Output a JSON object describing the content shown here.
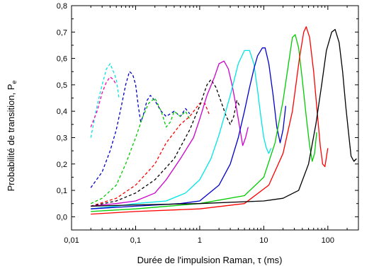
{
  "chart_data": {
    "type": "line",
    "xlabel": "Durée de l'impulsion Raman, τ (ms)",
    "ylabel": "Probabilité de transition, P",
    "ylabel_subscript": "e",
    "x_scale": "log",
    "xlim": [
      0.01,
      300
    ],
    "ylim": [
      -0.05,
      0.8
    ],
    "x_ticks": [
      {
        "value": 0.01,
        "label": "0,01"
      },
      {
        "value": 0.1,
        "label": "0,1"
      },
      {
        "value": 1,
        "label": "1"
      },
      {
        "value": 10,
        "label": "10"
      },
      {
        "value": 100,
        "label": "100"
      }
    ],
    "y_ticks": [
      {
        "value": 0.0,
        "label": "0,0"
      },
      {
        "value": 0.1,
        "label": "0,1"
      },
      {
        "value": 0.2,
        "label": "0,2"
      },
      {
        "value": 0.3,
        "label": "0,3"
      },
      {
        "value": 0.4,
        "label": "0,4"
      },
      {
        "value": 0.5,
        "label": "0,5"
      },
      {
        "value": 0.6,
        "label": "0,6"
      },
      {
        "value": 0.7,
        "label": "0,7"
      },
      {
        "value": 0.8,
        "label": "0,8"
      }
    ],
    "grid": false,
    "series": [
      {
        "color": "#00e5e5",
        "style": "dashed",
        "points": [
          [
            0.02,
            0.3
          ],
          [
            0.025,
            0.42
          ],
          [
            0.03,
            0.5
          ],
          [
            0.035,
            0.56
          ],
          [
            0.04,
            0.58
          ],
          [
            0.045,
            0.55
          ],
          [
            0.05,
            0.52
          ],
          [
            0.055,
            0.45
          ]
        ]
      },
      {
        "color": "#ff00aa",
        "style": "dashed",
        "points": [
          [
            0.02,
            0.34
          ],
          [
            0.025,
            0.4
          ],
          [
            0.03,
            0.47
          ],
          [
            0.035,
            0.51
          ],
          [
            0.04,
            0.53
          ],
          [
            0.045,
            0.52
          ],
          [
            0.05,
            0.5
          ]
        ]
      },
      {
        "color": "#0000cc",
        "style": "dashed",
        "points": [
          [
            0.02,
            0.11
          ],
          [
            0.03,
            0.17
          ],
          [
            0.04,
            0.25
          ],
          [
            0.05,
            0.33
          ],
          [
            0.06,
            0.42
          ],
          [
            0.07,
            0.5
          ],
          [
            0.08,
            0.55
          ],
          [
            0.09,
            0.54
          ],
          [
            0.1,
            0.5
          ],
          [
            0.11,
            0.42
          ],
          [
            0.12,
            0.36
          ],
          [
            0.13,
            0.38
          ],
          [
            0.15,
            0.44
          ],
          [
            0.17,
            0.46
          ],
          [
            0.2,
            0.44
          ],
          [
            0.25,
            0.4
          ],
          [
            0.3,
            0.38
          ],
          [
            0.4,
            0.4
          ],
          [
            0.5,
            0.38
          ],
          [
            0.6,
            0.41
          ],
          [
            0.7,
            0.39
          ]
        ]
      },
      {
        "color": "#00cc00",
        "style": "dashed",
        "points": [
          [
            0.02,
            0.05
          ],
          [
            0.03,
            0.07
          ],
          [
            0.05,
            0.12
          ],
          [
            0.07,
            0.2
          ],
          [
            0.1,
            0.3
          ],
          [
            0.13,
            0.38
          ],
          [
            0.16,
            0.43
          ],
          [
            0.2,
            0.45
          ],
          [
            0.25,
            0.4
          ],
          [
            0.3,
            0.34
          ],
          [
            0.35,
            0.36
          ],
          [
            0.4,
            0.4
          ],
          [
            0.5,
            0.38
          ],
          [
            0.6,
            0.4
          ],
          [
            0.7,
            0.37
          ]
        ]
      },
      {
        "color": "#ff0000",
        "style": "dashed",
        "points": [
          [
            0.02,
            0.04
          ],
          [
            0.05,
            0.07
          ],
          [
            0.1,
            0.12
          ],
          [
            0.2,
            0.2
          ],
          [
            0.3,
            0.28
          ],
          [
            0.5,
            0.35
          ],
          [
            0.7,
            0.38
          ],
          [
            1.0,
            0.43
          ],
          [
            1.2,
            0.43
          ],
          [
            1.4,
            0.39
          ]
        ]
      },
      {
        "color": "#000000",
        "style": "dashed",
        "points": [
          [
            0.02,
            0.04
          ],
          [
            0.05,
            0.06
          ],
          [
            0.1,
            0.09
          ],
          [
            0.2,
            0.14
          ],
          [
            0.4,
            0.22
          ],
          [
            0.7,
            0.33
          ],
          [
            1.0,
            0.42
          ],
          [
            1.3,
            0.5
          ],
          [
            1.5,
            0.52
          ],
          [
            1.8,
            0.49
          ],
          [
            2.2,
            0.43
          ],
          [
            2.6,
            0.38
          ],
          [
            3.0,
            0.35
          ],
          [
            3.4,
            0.38
          ],
          [
            3.8,
            0.44
          ],
          [
            4.2,
            0.42
          ]
        ]
      },
      {
        "color": "#cc00cc",
        "style": "solid",
        "points": [
          [
            0.02,
            0.04
          ],
          [
            0.05,
            0.05
          ],
          [
            0.1,
            0.06
          ],
          [
            0.2,
            0.09
          ],
          [
            0.3,
            0.14
          ],
          [
            0.5,
            0.22
          ],
          [
            0.8,
            0.3
          ],
          [
            1.0,
            0.37
          ],
          [
            1.3,
            0.46
          ],
          [
            1.7,
            0.53
          ],
          [
            2.0,
            0.58
          ],
          [
            2.4,
            0.59
          ],
          [
            2.8,
            0.56
          ],
          [
            3.2,
            0.5
          ],
          [
            3.7,
            0.42
          ],
          [
            4.2,
            0.34
          ],
          [
            4.7,
            0.27
          ],
          [
            5.2,
            0.3
          ],
          [
            5.7,
            0.34
          ]
        ]
      },
      {
        "color": "#00e5e5",
        "style": "solid",
        "points": [
          [
            0.02,
            0.03
          ],
          [
            0.05,
            0.04
          ],
          [
            0.1,
            0.05
          ],
          [
            0.3,
            0.06
          ],
          [
            0.6,
            0.09
          ],
          [
            1.0,
            0.14
          ],
          [
            1.5,
            0.22
          ],
          [
            2.0,
            0.31
          ],
          [
            3.0,
            0.46
          ],
          [
            4.0,
            0.58
          ],
          [
            5.0,
            0.63
          ],
          [
            6.0,
            0.63
          ],
          [
            7.0,
            0.58
          ],
          [
            8.0,
            0.48
          ],
          [
            9.0,
            0.38
          ],
          [
            10.0,
            0.3
          ],
          [
            11.0,
            0.26
          ],
          [
            12.0,
            0.24
          ],
          [
            13.0,
            0.26
          ]
        ]
      },
      {
        "color": "#0000cc",
        "style": "solid",
        "points": [
          [
            0.02,
            0.03
          ],
          [
            0.1,
            0.04
          ],
          [
            0.5,
            0.05
          ],
          [
            1.0,
            0.06
          ],
          [
            2.0,
            0.12
          ],
          [
            3.0,
            0.2
          ],
          [
            4.0,
            0.3
          ],
          [
            5.0,
            0.4
          ],
          [
            6.0,
            0.49
          ],
          [
            7.0,
            0.56
          ],
          [
            8.0,
            0.61
          ],
          [
            9.5,
            0.64
          ],
          [
            10.5,
            0.64
          ],
          [
            12.0,
            0.58
          ],
          [
            14.0,
            0.46
          ],
          [
            16.0,
            0.34
          ],
          [
            18.0,
            0.28
          ],
          [
            20.0,
            0.33
          ],
          [
            22.0,
            0.42
          ]
        ]
      },
      {
        "color": "#00cc00",
        "style": "solid",
        "points": [
          [
            0.02,
            0.02
          ],
          [
            0.1,
            0.03
          ],
          [
            1.0,
            0.05
          ],
          [
            5.0,
            0.08
          ],
          [
            10.0,
            0.15
          ],
          [
            15.0,
            0.28
          ],
          [
            20.0,
            0.44
          ],
          [
            25.0,
            0.6
          ],
          [
            28.0,
            0.68
          ],
          [
            31.0,
            0.69
          ],
          [
            35.0,
            0.64
          ],
          [
            40.0,
            0.52
          ],
          [
            46.0,
            0.38
          ],
          [
            52.0,
            0.27
          ],
          [
            57.0,
            0.21
          ],
          [
            62.0,
            0.24
          ],
          [
            67.0,
            0.32
          ]
        ]
      },
      {
        "color": "#ff0000",
        "style": "solid",
        "points": [
          [
            0.02,
            0.01
          ],
          [
            0.1,
            0.02
          ],
          [
            1.0,
            0.03
          ],
          [
            5.0,
            0.05
          ],
          [
            12.0,
            0.12
          ],
          [
            20.0,
            0.24
          ],
          [
            28.0,
            0.4
          ],
          [
            36.0,
            0.6
          ],
          [
            42.0,
            0.7
          ],
          [
            46.0,
            0.72
          ],
          [
            52.0,
            0.68
          ],
          [
            60.0,
            0.55
          ],
          [
            68.0,
            0.4
          ],
          [
            76.0,
            0.27
          ],
          [
            83.0,
            0.2
          ],
          [
            90.0,
            0.19
          ],
          [
            100.0,
            0.26
          ]
        ]
      },
      {
        "color": "#000000",
        "style": "solid",
        "points": [
          [
            0.02,
            0.04
          ],
          [
            0.1,
            0.045
          ],
          [
            1.0,
            0.05
          ],
          [
            10.0,
            0.06
          ],
          [
            20.0,
            0.07
          ],
          [
            35.0,
            0.1
          ],
          [
            50.0,
            0.2
          ],
          [
            65.0,
            0.35
          ],
          [
            80.0,
            0.5
          ],
          [
            95.0,
            0.63
          ],
          [
            115.0,
            0.7
          ],
          [
            130.0,
            0.71
          ],
          [
            150.0,
            0.66
          ],
          [
            170.0,
            0.55
          ],
          [
            190.0,
            0.42
          ],
          [
            210.0,
            0.32
          ],
          [
            230.0,
            0.23
          ],
          [
            255.0,
            0.21
          ],
          [
            280.0,
            0.22
          ]
        ]
      },
      {
        "color": "#000000",
        "style": "solid",
        "points": [
          [
            255.0,
            0.21
          ],
          [
            280.0,
            0.22
          ]
        ]
      }
    ]
  }
}
